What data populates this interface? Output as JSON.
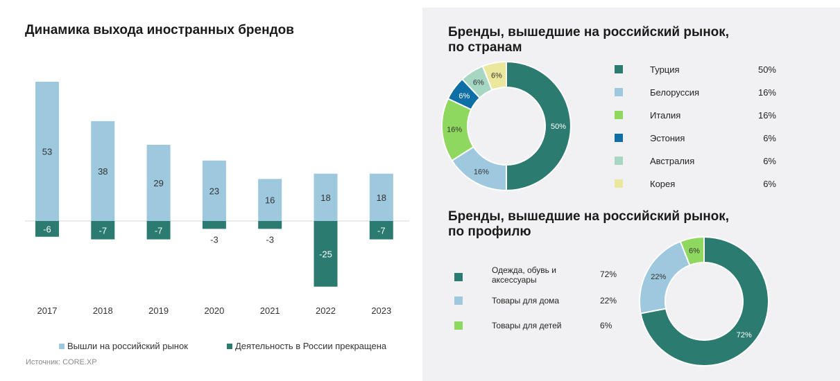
{
  "left_title": "Динамика выхода иностранных брендов",
  "source": "Источник: CORE.XP",
  "legend": {
    "entered": "Вышли на российский рынок",
    "exited": "Деятельность в России прекращена"
  },
  "colors": {
    "light_blue": "#9dc8de",
    "dark_teal": "#2b7b70",
    "green": "#8fd860",
    "blue": "#0e6ea6",
    "mint": "#a6d7c2",
    "yellow": "#ebe79c"
  },
  "chart_data": [
    {
      "type": "bar",
      "title": "Динамика выхода иностранных брендов",
      "categories": [
        "2017",
        "2018",
        "2019",
        "2020",
        "2021",
        "2022",
        "2023"
      ],
      "series": [
        {
          "name": "Вышли на российский рынок",
          "values": [
            53,
            38,
            29,
            23,
            16,
            18,
            18
          ],
          "labels": [
            "53",
            "38",
            "29",
            "23",
            "16",
            "18",
            "18"
          ]
        },
        {
          "name": "Деятельность в России прекращена",
          "values": [
            -6,
            -7,
            -7,
            -3,
            -3,
            -25,
            -7
          ],
          "labels": [
            "-6",
            "-7",
            "-7",
            "-3",
            "-3",
            "-25",
            "-7"
          ]
        }
      ]
    },
    {
      "type": "pie",
      "title": "Бренды, вышедшие на российский рынок, по странам",
      "title_lines": [
        "Бренды, вышедшие на российский рынок,",
        "по странам"
      ],
      "slices": [
        {
          "name": "Турция",
          "value": 50,
          "label": "50%",
          "color": "#2b7b70"
        },
        {
          "name": "Белоруссия",
          "value": 16,
          "label": "16%",
          "color": "#9dc8de"
        },
        {
          "name": "Италия",
          "value": 16,
          "label": "16%",
          "color": "#8fd860"
        },
        {
          "name": "Эстония",
          "value": 6,
          "label": "6%",
          "color": "#0e6ea6"
        },
        {
          "name": "Австралия",
          "value": 6,
          "label": "6%",
          "color": "#a6d7c2"
        },
        {
          "name": "Корея",
          "value": 6,
          "label": "6%",
          "color": "#ebe79c"
        }
      ]
    },
    {
      "type": "pie",
      "title": "Бренды, вышедшие на российский рынок, по профилю",
      "title_lines": [
        "Бренды, вышедшие на российский рынок,",
        "по профилю"
      ],
      "slices": [
        {
          "name": "Одежда, обувь и аксессуары",
          "name_lines": [
            "Одежда, обувь и",
            "аксессуары"
          ],
          "value": 72,
          "label": "72%",
          "color": "#2b7b70"
        },
        {
          "name": "Товары для дома",
          "name_lines": [
            "Товары для дома"
          ],
          "value": 22,
          "label": "22%",
          "color": "#9dc8de"
        },
        {
          "name": "Товары для детей",
          "name_lines": [
            "Товары для детей"
          ],
          "value": 6,
          "label": "6%",
          "color": "#8fd860"
        }
      ]
    }
  ]
}
